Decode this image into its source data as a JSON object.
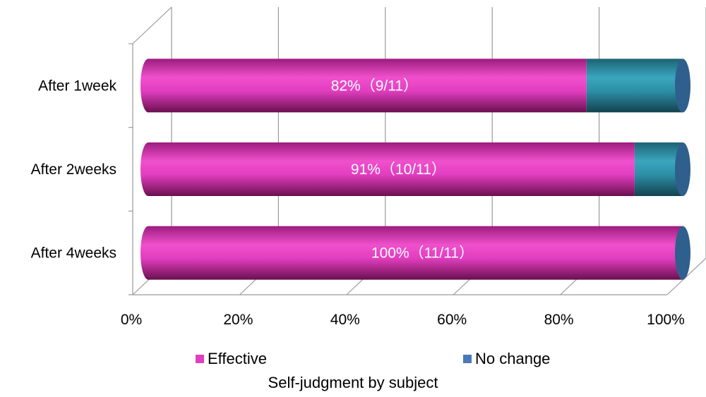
{
  "chart_data": {
    "type": "bar",
    "orientation": "horizontal",
    "stacked": true,
    "percent_stacked": true,
    "three_d": true,
    "categories": [
      "After 1week",
      "After 2weeks",
      "After 4weeks"
    ],
    "series": [
      {
        "name": "Effective",
        "color": "#e040c0",
        "values": [
          82,
          91,
          100
        ],
        "labels": [
          "82%（9/11）",
          "91%（10/11）",
          "100%（11/11）"
        ]
      },
      {
        "name": "No change",
        "color": "#2e8ea6",
        "values": [
          18,
          9,
          0
        ]
      }
    ],
    "xlim": [
      0,
      100
    ],
    "xticks": [
      "0%",
      "20%",
      "40%",
      "60%",
      "80%",
      "100%"
    ],
    "grid": true,
    "legend_position": "bottom",
    "xlabel": "Self-judgment by subject",
    "ylabel": ""
  }
}
